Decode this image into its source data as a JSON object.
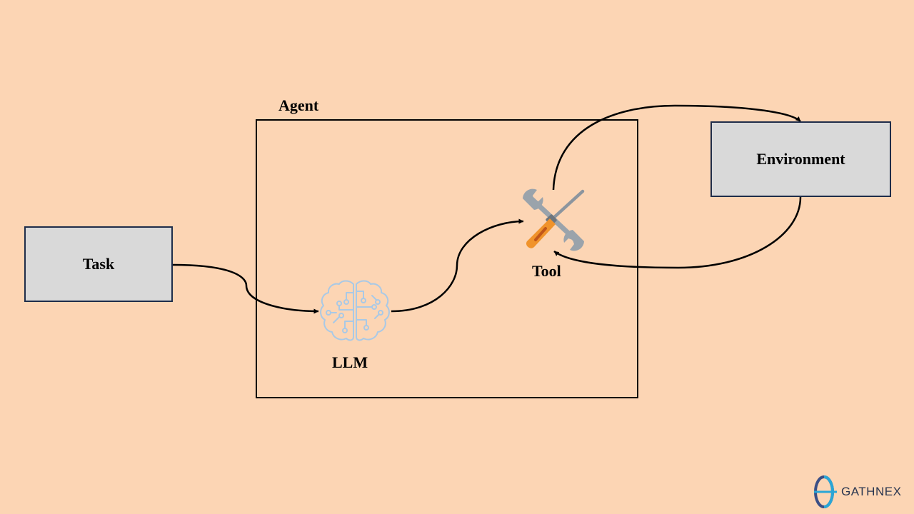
{
  "diagram": {
    "agent_label": "Agent",
    "task_label": "Task",
    "environment_label": "Environment",
    "llm_label": "LLM",
    "tool_label": "Tool"
  },
  "logo": {
    "text": "GATHNEX"
  },
  "icons": {
    "llm": "brain-circuit-icon",
    "tool": "screwdriver-wrench-icon",
    "logo": "theta-logo-icon"
  },
  "colors": {
    "background": "#fcd5b4",
    "box_fill": "#d9d9d9",
    "box_border": "#1f2d4a",
    "brain": "#a9c9e6",
    "screwdriver": "#f0932b",
    "wrench": "#9aa3ab"
  }
}
